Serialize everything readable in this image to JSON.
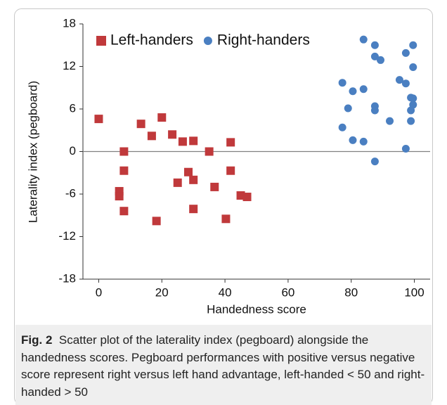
{
  "chart_data": {
    "type": "scatter",
    "xlabel": "Handedness score",
    "ylabel": "Laterality index (pegboard)",
    "xlim": [
      -5,
      105
    ],
    "xticks": [
      0,
      20,
      40,
      60,
      80,
      100
    ],
    "ylim": [
      -18,
      18
    ],
    "yticks": [
      -18,
      -12,
      -6,
      0,
      6,
      12,
      18
    ],
    "legend": "top",
    "series": [
      {
        "name": "Left-handers",
        "color": "#c0393b",
        "marker": "square",
        "x": [
          0,
          13.4,
          16.8,
          20,
          23.3,
          26.6,
          30,
          8,
          8,
          6.5,
          6.5,
          8,
          18.3,
          25,
          28.4,
          30,
          30,
          35,
          36.7,
          40.3,
          41.8,
          41.8,
          45,
          47
        ],
        "values": [
          4.6,
          3.9,
          2.2,
          4.8,
          2.4,
          1.4,
          1.5,
          0,
          -2.7,
          -5.6,
          -6.3,
          -8.4,
          -9.8,
          -4.4,
          -2.9,
          -4,
          -8.1,
          0,
          -5,
          -9.5,
          1.3,
          -2.7,
          -6.2,
          -6.4
        ]
      },
      {
        "name": "Right-handers",
        "color": "#4a7fc1",
        "marker": "circle",
        "x": [
          83.9,
          87.5,
          87.5,
          89.3,
          99.6,
          97.3,
          99.6,
          77.2,
          80.5,
          83.9,
          95.3,
          97.3,
          79,
          87.5,
          87.5,
          98.9,
          99.6,
          99.6,
          98.9,
          92.2,
          98.9,
          77.2,
          80.5,
          83.9,
          97.3,
          87.5
        ],
        "values": [
          15.8,
          15,
          13.4,
          12.9,
          15,
          13.9,
          11.9,
          9.7,
          8.5,
          8.8,
          10.1,
          9.6,
          6.1,
          6.4,
          5.8,
          7.6,
          7.5,
          6.6,
          5.8,
          4.3,
          4.3,
          3.4,
          1.6,
          1.4,
          0.4,
          -1.4
        ]
      }
    ]
  },
  "caption": {
    "label": "Fig. 2",
    "text": "Scatter plot of the laterality index (pegboard) alongside the handedness scores. Pegboard performances with positive versus negative score represent right versus left hand advantage, left-handed < 50 and right-handed > 50"
  }
}
